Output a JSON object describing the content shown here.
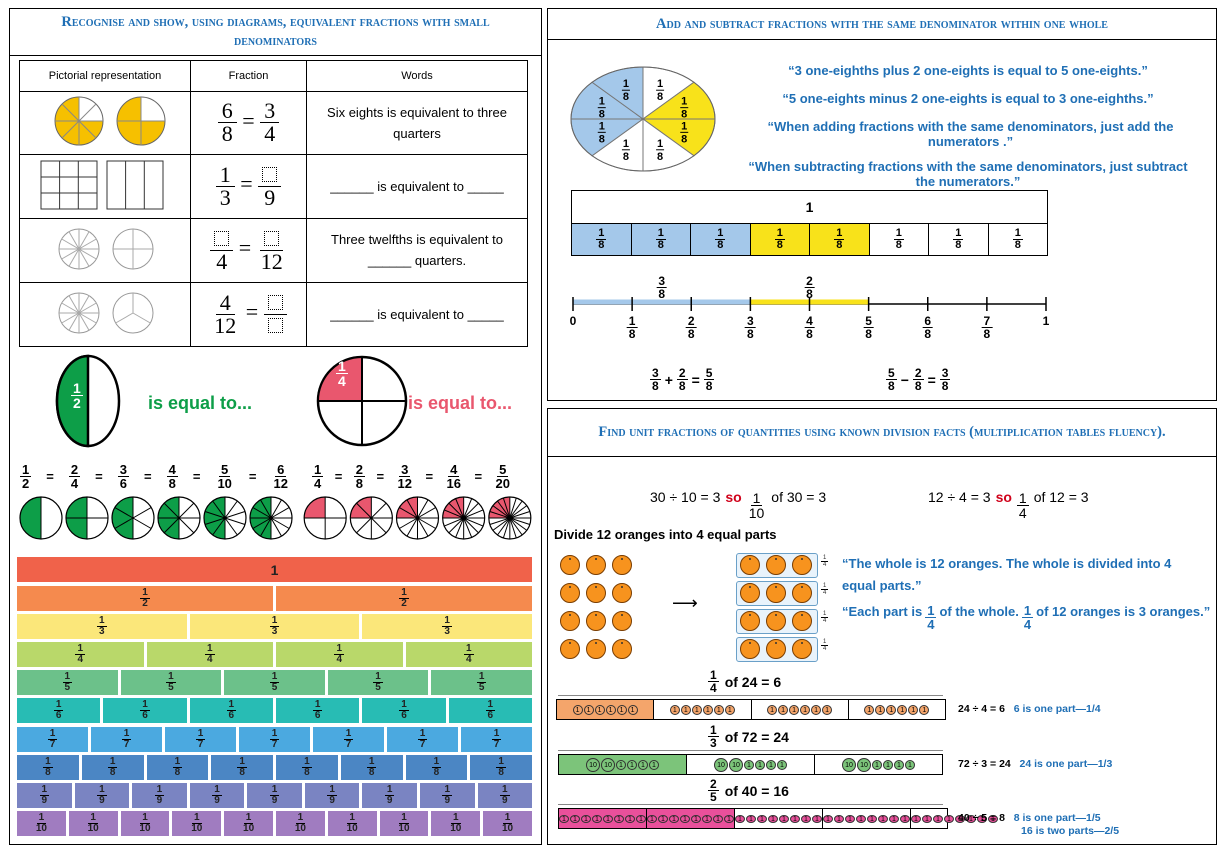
{
  "panel1": {
    "title": "Recognise and show, using diagrams, equivalent fractions with small denominators",
    "table": {
      "headers": [
        "Pictorial representation",
        "Fraction",
        "Words"
      ],
      "rows": [
        {
          "lhs": {
            "n": "6",
            "d": "8"
          },
          "rhs": {
            "n": "3",
            "d": "4"
          },
          "words": "Six eights is equivalent to three quarters"
        },
        {
          "lhs": {
            "n": "1",
            "d": "3"
          },
          "rhs": {
            "n": "",
            "d": "9"
          },
          "words": "______ is equivalent to _____"
        },
        {
          "lhs": {
            "n": "",
            "d": "4"
          },
          "rhs": {
            "n": "",
            "d": "12"
          },
          "words": "Three twelfths is equivalent to ______ quarters."
        },
        {
          "lhs": {
            "n": "4",
            "d": "12"
          },
          "rhs": {
            "n": "",
            "d": ""
          },
          "words": "______ is equivalent to _____"
        }
      ]
    },
    "big_half": {
      "n": "1",
      "d": "2",
      "label": "is equal to..."
    },
    "big_quarter": {
      "n": "1",
      "d": "4",
      "label": "is equal to..."
    },
    "half_chain": [
      [
        "1",
        "2"
      ],
      [
        "2",
        "4"
      ],
      [
        "3",
        "6"
      ],
      [
        "4",
        "8"
      ],
      [
        "5",
        "10"
      ],
      [
        "6",
        "12"
      ]
    ],
    "quarter_chain": [
      [
        "1",
        "4"
      ],
      [
        "2",
        "8"
      ],
      [
        "3",
        "12"
      ],
      [
        "4",
        "16"
      ],
      [
        "5",
        "20"
      ]
    ],
    "equals": "=",
    "wall": {
      "whole": "1",
      "rows": [
        {
          "d": "2",
          "color": "#f58a4e"
        },
        {
          "d": "3",
          "color": "#fbe77a"
        },
        {
          "d": "4",
          "color": "#b9d86a"
        },
        {
          "d": "5",
          "color": "#6cc18a"
        },
        {
          "d": "6",
          "color": "#28bcb4"
        },
        {
          "d": "7",
          "color": "#4ba9e0"
        },
        {
          "d": "8",
          "color": "#4b86c4"
        },
        {
          "d": "9",
          "color": "#7a84c2"
        },
        {
          "d": "10",
          "color": "#a07cc0"
        }
      ]
    },
    "colors": {
      "green": "#0d9e48",
      "pink": "#e9576e",
      "yellow": "#f6c000",
      "whole": "#f0624a"
    }
  },
  "panel2": {
    "title": "Add and subtract fractions with the same denominator within one whole",
    "pie_label": {
      "n": "1",
      "d": "8"
    },
    "quotes": [
      "“3 one-eighths plus 2 one-eights is equal to 5 one-eights.”",
      "“5 one-eights minus 2 one-eights is equal to 3 one-eighths.”",
      "“When adding fractions with the same denominators, just add the numerators .”",
      "“When subtracting fractions with the same denominators, just subtract the numerators.”"
    ],
    "bar_whole": "1",
    "bar_segments": 8,
    "bar_shading": [
      "blue",
      "blue",
      "blue",
      "yellow",
      "yellow",
      "white",
      "white",
      "white"
    ],
    "numberline": {
      "start": "0",
      "end": "1",
      "ticks": [
        [
          "1",
          "8"
        ],
        [
          "2",
          "8"
        ],
        [
          "3",
          "8"
        ],
        [
          "4",
          "8"
        ],
        [
          "5",
          "8"
        ],
        [
          "6",
          "8"
        ],
        [
          "7",
          "8"
        ]
      ],
      "jump_a": {
        "n": "3",
        "d": "8"
      },
      "jump_b": {
        "n": "2",
        "d": "8"
      }
    },
    "sum_eq": {
      "a": [
        "3",
        "8"
      ],
      "op": "+",
      "b": [
        "2",
        "8"
      ],
      "eq": "=",
      "r": [
        "5",
        "8"
      ]
    },
    "diff_eq": {
      "a": [
        "5",
        "8"
      ],
      "op": "−",
      "b": [
        "2",
        "8"
      ],
      "eq": "=",
      "r": [
        "3",
        "8"
      ]
    },
    "colors": {
      "blue": "#a4c8ea",
      "yellow": "#f8e21a"
    }
  },
  "panel3": {
    "title": "Find unit fractions of quantities using known division facts (multiplication tables fluency).",
    "fact1": {
      "pre": "30 ÷ 10 = 3",
      "so": "so",
      "n": "1",
      "d": "10",
      "post": "of 30 = 3"
    },
    "fact2": {
      "pre": "12 ÷ 4 = 3",
      "so": "so",
      "n": "1",
      "d": "4",
      "post": "of 12 = 3"
    },
    "divide_label": "Divide 12 oranges into 4 equal parts",
    "group_tag": {
      "n": "1",
      "d": "4"
    },
    "arrow": "⟶",
    "quote1": "“The whole is 12 oranges. The whole is divided into 4 equal parts.”",
    "quote2a": "“Each part is",
    "quote2b": "of the whole.",
    "quote2c": "of 12 oranges is 3 oranges.”",
    "quote2_frac": {
      "n": "1",
      "d": "4"
    },
    "bars": [
      {
        "n": "1",
        "d": "4",
        "text": "of  24 = 6",
        "fact": "24 ÷ 4 = 6",
        "note": "6 is one part—1/4",
        "note2": "",
        "color": "#f4a56b",
        "parts": 4,
        "shaded": 1,
        "counters": [
          "1",
          "1",
          "1",
          "1",
          "1",
          "1"
        ]
      },
      {
        "n": "1",
        "d": "3",
        "text": "of  72 = 24",
        "fact": "72 ÷ 3 = 24",
        "note": "24 is one part—1/3",
        "note2": "",
        "color": "#7cc47a",
        "parts": 3,
        "shaded": 1,
        "counters": [
          "10",
          "10",
          "1",
          "1",
          "1",
          "1"
        ]
      },
      {
        "n": "2",
        "d": "5",
        "text": "of  40 = 16",
        "fact": "40 ÷ 5 = 8",
        "note": "8 is one part—1/5",
        "note2": "16 is two parts—2/5",
        "color": "#e9509b",
        "parts": 5,
        "shaded": 2,
        "counters": [
          "1",
          "1",
          "1",
          "1",
          "1",
          "1",
          "1",
          "1"
        ]
      }
    ]
  }
}
